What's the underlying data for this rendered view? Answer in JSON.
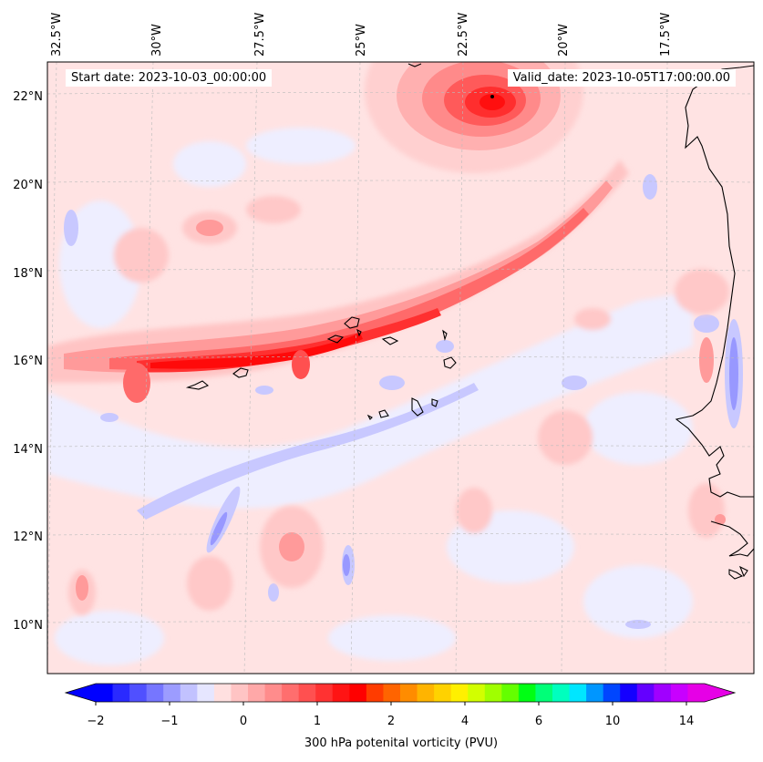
{
  "header": {
    "start_date": "Start date: 2023-10-03_00:00:00",
    "valid_date": "Valid_date: 2023-10-05T17:00:00.00"
  },
  "axes": {
    "lon_labels": [
      "32.5°W",
      "30°W",
      "27.5°W",
      "25°W",
      "22.5°W",
      "20°W",
      "17.5°W"
    ],
    "lat_labels": [
      "22°N",
      "20°N",
      "18°N",
      "16°N",
      "14°N",
      "12°N",
      "10°N"
    ],
    "lon_values": [
      -32.5,
      -30,
      -27.5,
      -25,
      -22.5,
      -20,
      -17.5
    ],
    "lat_values": [
      22,
      20,
      18,
      16,
      14,
      12,
      10
    ]
  },
  "colorbar": {
    "label": "300 hPa potenital vorticity (PVU)",
    "tick_labels": [
      "−2",
      "−1",
      "0",
      "1",
      "2",
      "4",
      "6",
      "10",
      "14"
    ],
    "colors": [
      "#0000ff",
      "#2a2aff",
      "#5050ff",
      "#7676ff",
      "#9c9cff",
      "#c2c2ff",
      "#e6e6ff",
      "#ffe0e0",
      "#ffc4c4",
      "#ffa8a8",
      "#ff8c8c",
      "#ff6e6e",
      "#ff5050",
      "#ff3232",
      "#ff1414",
      "#ff0000",
      "#ff3c00",
      "#ff6400",
      "#ff8c00",
      "#ffb400",
      "#ffd200",
      "#fff000",
      "#d2ff00",
      "#a0ff00",
      "#64ff00",
      "#00ff14",
      "#00ff78",
      "#00ffbe",
      "#00e6ff",
      "#0096ff",
      "#0046ff",
      "#1400ff",
      "#6400ff",
      "#a000ff",
      "#c800ff",
      "#e600e6"
    ],
    "extend_low_color": "#0000ff",
    "extend_high_color": "#e600e6"
  }
}
